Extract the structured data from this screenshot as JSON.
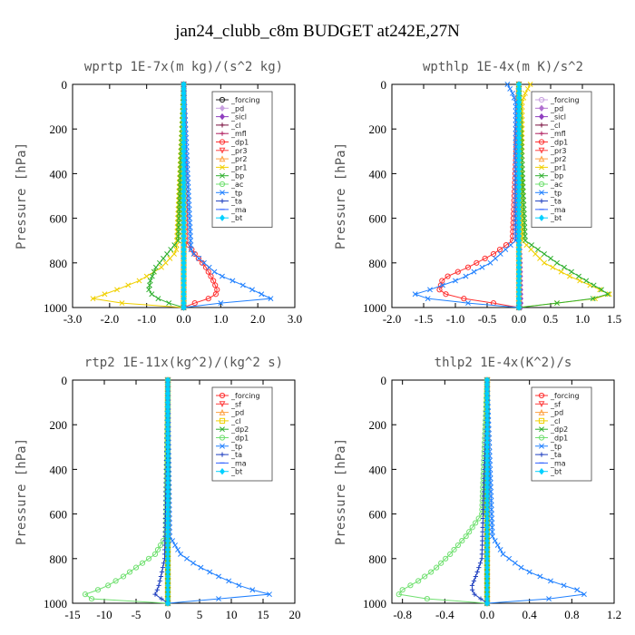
{
  "figure": {
    "title": "jan24_clubb_c8m  BUDGET at242E,27N"
  },
  "chart_data": [
    {
      "type": "line",
      "title": "wprtp  1E-7x(m kg)/(s^2 kg)",
      "ylabel": "Pressure [hPa]",
      "xlabel": "",
      "xlim": [
        -3,
        3
      ],
      "ylim": [
        1000,
        0
      ],
      "xticks": [
        -3,
        -2,
        -1,
        0,
        1,
        2,
        3
      ],
      "xtick_labels": [
        "-3.0",
        "-2.0",
        "-1.0",
        "0.0",
        "1.0",
        "2.0",
        "3.0"
      ],
      "yticks": [
        0,
        200,
        400,
        600,
        800,
        1000
      ],
      "ytick_labels": [
        "0",
        "200",
        "400",
        "600",
        "800",
        "1000"
      ],
      "legend_position": "top-right",
      "series": [
        {
          "name": "_forcing",
          "color": "#222222",
          "marker": "o",
          "p": [
            0,
            200,
            400,
            600,
            800,
            1000
          ],
          "x": [
            0,
            0,
            0,
            0,
            0,
            0
          ]
        },
        {
          "name": "_pd",
          "color": "#c8a0e0",
          "marker": "d",
          "p": [
            0,
            1000
          ],
          "x": [
            0,
            0
          ]
        },
        {
          "name": "_sicl",
          "color": "#9040c0",
          "marker": "d",
          "p": [
            0,
            1000
          ],
          "x": [
            0,
            0
          ]
        },
        {
          "name": "_cl",
          "color": "#7a1040",
          "marker": "+",
          "p": [
            0,
            1000
          ],
          "x": [
            0,
            0
          ]
        },
        {
          "name": "_mfl",
          "color": "#b02060",
          "marker": "+",
          "p": [
            0,
            1000
          ],
          "x": [
            0,
            0
          ]
        },
        {
          "name": "_dp1",
          "color": "#ff3030",
          "marker": "o",
          "p": [
            0,
            700,
            760,
            820,
            880,
            920,
            950,
            980,
            1000
          ],
          "x": [
            0,
            0.05,
            0.3,
            0.6,
            0.8,
            0.9,
            0.85,
            0.3,
            0
          ]
        },
        {
          "name": "_pr3",
          "color": "#ff4040",
          "marker": "v",
          "p": [
            0,
            1000
          ],
          "x": [
            0,
            0
          ]
        },
        {
          "name": "_pr2",
          "color": "#ffa040",
          "marker": "^",
          "p": [
            0,
            1000
          ],
          "x": [
            0,
            0
          ]
        },
        {
          "name": "_pr1",
          "color": "#f0d000",
          "marker": "x",
          "p": [
            0,
            750,
            820,
            880,
            920,
            950,
            970,
            985,
            1000
          ],
          "x": [
            0,
            -0.2,
            -0.6,
            -1.2,
            -1.8,
            -2.3,
            -2.6,
            -1.2,
            0
          ]
        },
        {
          "name": "_bp",
          "color": "#30b030",
          "marker": "x",
          "p": [
            0,
            700,
            760,
            820,
            880,
            930,
            970,
            1000
          ],
          "x": [
            0,
            -0.15,
            -0.45,
            -0.75,
            -0.9,
            -0.95,
            -0.6,
            0
          ]
        },
        {
          "name": "_ac",
          "color": "#70e070",
          "marker": "o",
          "p": [
            0,
            1000
          ],
          "x": [
            0,
            0
          ]
        },
        {
          "name": "_tp",
          "color": "#2080ff",
          "marker": "x",
          "p": [
            0,
            750,
            850,
            900,
            940,
            960,
            980,
            1000
          ],
          "x": [
            0,
            0.2,
            0.9,
            1.6,
            2.1,
            2.35,
            1.0,
            0
          ]
        },
        {
          "name": "_ta",
          "color": "#2040c0",
          "marker": "+",
          "p": [
            0,
            1000
          ],
          "x": [
            0,
            0
          ]
        },
        {
          "name": "_ma",
          "color": "#3060ff",
          "marker": "-",
          "p": [
            0,
            1000
          ],
          "x": [
            0,
            0
          ]
        },
        {
          "name": "_bt",
          "color": "#00d0ff",
          "marker": "d",
          "p": [
            0,
            1000
          ],
          "x": [
            0,
            0
          ]
        }
      ]
    },
    {
      "type": "line",
      "title": "wpthlp  1E-4x(m K)/s^2",
      "ylabel": "Pressure [hPa]",
      "xlabel": "",
      "xlim": [
        -2,
        1.5
      ],
      "ylim": [
        1000,
        0
      ],
      "xticks": [
        -2,
        -1.5,
        -1,
        -0.5,
        0,
        0.5,
        1,
        1.5
      ],
      "xtick_labels": [
        "-2.0",
        "-1.5",
        "-1.0",
        "-0.5",
        "0.0",
        "0.5",
        "1.0",
        "1.5"
      ],
      "yticks": [
        0,
        200,
        400,
        600,
        800,
        1000
      ],
      "ytick_labels": [
        "0",
        "200",
        "400",
        "600",
        "800",
        "1000"
      ],
      "legend_position": "top-right",
      "series": [
        {
          "name": "_forcing",
          "color": "#c8a0e0",
          "marker": "o",
          "p": [
            0,
            1000
          ],
          "x": [
            0,
            0
          ]
        },
        {
          "name": "_pd",
          "color": "#b070d0",
          "marker": "d",
          "p": [
            0,
            1000
          ],
          "x": [
            0,
            0
          ]
        },
        {
          "name": "_sicl",
          "color": "#9040c0",
          "marker": "d",
          "p": [
            0,
            200,
            400,
            600,
            800,
            1000
          ],
          "x": [
            0,
            0,
            0,
            0,
            0.02,
            0.03
          ]
        },
        {
          "name": "_cl",
          "color": "#7a1040",
          "marker": "+",
          "p": [
            0,
            1000
          ],
          "x": [
            0,
            0
          ]
        },
        {
          "name": "_mfl",
          "color": "#b02060",
          "marker": "+",
          "p": [
            0,
            1000
          ],
          "x": [
            0,
            0
          ]
        },
        {
          "name": "_dp1",
          "color": "#ff3030",
          "marker": "o",
          "p": [
            0,
            700,
            760,
            820,
            870,
            920,
            950,
            980,
            1000
          ],
          "x": [
            0,
            -0.1,
            -0.4,
            -0.8,
            -1.2,
            -1.25,
            -1.1,
            -0.4,
            0
          ]
        },
        {
          "name": "_pr3",
          "color": "#ff4040",
          "marker": "v",
          "p": [
            0,
            1000
          ],
          "x": [
            0,
            0
          ]
        },
        {
          "name": "_pr2",
          "color": "#ffa040",
          "marker": "^",
          "p": [
            0,
            1000
          ],
          "x": [
            0,
            0
          ]
        },
        {
          "name": "_pr1",
          "color": "#f0d000",
          "marker": "x",
          "p": [
            0,
            40,
            80,
            700,
            800,
            860,
            910,
            950,
            980,
            1000
          ],
          "x": [
            0.18,
            0.1,
            0.05,
            0.05,
            0.4,
            0.8,
            1.2,
            1.5,
            0.6,
            0
          ]
        },
        {
          "name": "_bp",
          "color": "#30b030",
          "marker": "x",
          "p": [
            0,
            700,
            800,
            870,
            920,
            950,
            980,
            1000
          ],
          "x": [
            0,
            0.1,
            0.6,
            1.0,
            1.3,
            1.45,
            0.6,
            0
          ]
        },
        {
          "name": "_ac",
          "color": "#70e070",
          "marker": "o",
          "p": [
            0,
            1000
          ],
          "x": [
            0,
            0
          ]
        },
        {
          "name": "_tp",
          "color": "#2080ff",
          "marker": "x",
          "p": [
            0,
            40,
            80,
            700,
            800,
            870,
            920,
            950,
            980,
            1000
          ],
          "x": [
            -0.18,
            -0.1,
            -0.05,
            -0.05,
            -0.45,
            -0.9,
            -1.4,
            -1.75,
            -0.8,
            0
          ]
        },
        {
          "name": "_ta",
          "color": "#2040c0",
          "marker": "+",
          "p": [
            0,
            1000
          ],
          "x": [
            0,
            0
          ]
        },
        {
          "name": "_ma",
          "color": "#3060ff",
          "marker": "-",
          "p": [
            0,
            1000
          ],
          "x": [
            0,
            0
          ]
        },
        {
          "name": "_bt",
          "color": "#00d0ff",
          "marker": "d",
          "p": [
            0,
            1000
          ],
          "x": [
            0,
            0
          ]
        }
      ]
    },
    {
      "type": "line",
      "title": "rtp2  1E-11x(kg^2)/(kg^2 s)",
      "ylabel": "Pressure [hPa]",
      "xlabel": "",
      "xlim": [
        -15,
        20
      ],
      "ylim": [
        1000,
        0
      ],
      "xticks": [
        -15,
        -10,
        -5,
        0,
        5,
        10,
        15,
        20
      ],
      "xtick_labels": [
        "-15",
        "-10",
        "-5",
        "0",
        "5",
        "10",
        "15",
        "20"
      ],
      "yticks": [
        0,
        200,
        400,
        600,
        800,
        1000
      ],
      "ytick_labels": [
        "0",
        "200",
        "400",
        "600",
        "800",
        "1000"
      ],
      "legend_position": "top-right",
      "series": [
        {
          "name": "_forcing",
          "color": "#ff3030",
          "marker": "o",
          "p": [
            0,
            200,
            400,
            600,
            800,
            1000
          ],
          "x": [
            0,
            0,
            0,
            0,
            0,
            0
          ]
        },
        {
          "name": "_sf",
          "color": "#ff4040",
          "marker": "v",
          "p": [
            0,
            1000
          ],
          "x": [
            0,
            0
          ]
        },
        {
          "name": "_pd",
          "color": "#ffa040",
          "marker": "^",
          "p": [
            0,
            1000
          ],
          "x": [
            0,
            0
          ]
        },
        {
          "name": "_cl",
          "color": "#f0d000",
          "marker": "s",
          "p": [
            0,
            1000
          ],
          "x": [
            0,
            0
          ]
        },
        {
          "name": "_dp2",
          "color": "#30b030",
          "marker": "x",
          "p": [
            0,
            1000
          ],
          "x": [
            0,
            0
          ]
        },
        {
          "name": "_dp1",
          "color": "#70e070",
          "marker": "o",
          "p": [
            0,
            700,
            780,
            830,
            880,
            930,
            960,
            975,
            1000
          ],
          "x": [
            0,
            -0.3,
            -2.0,
            -4.5,
            -7.0,
            -10.0,
            -13.0,
            -15.0,
            0
          ]
        },
        {
          "name": "_tp",
          "color": "#2080ff",
          "marker": "x",
          "p": [
            0,
            700,
            780,
            830,
            880,
            930,
            960,
            980,
            1000
          ],
          "x": [
            0,
            0.3,
            2.0,
            4.5,
            8.0,
            12.0,
            16.0,
            8.0,
            0
          ]
        },
        {
          "name": "_ta",
          "color": "#2040c0",
          "marker": "+",
          "p": [
            0,
            800,
            870,
            930,
            960,
            1000
          ],
          "x": [
            0,
            -0.5,
            -1.0,
            -1.5,
            -2.0,
            0
          ]
        },
        {
          "name": "_ma",
          "color": "#3060ff",
          "marker": "-",
          "p": [
            0,
            1000
          ],
          "x": [
            0,
            0
          ]
        },
        {
          "name": "_bt",
          "color": "#00d0ff",
          "marker": "d",
          "p": [
            0,
            1000
          ],
          "x": [
            0,
            0
          ]
        }
      ]
    },
    {
      "type": "line",
      "title": "thlp2  1E-4x(K^2)/s",
      "ylabel": "Pressure [hPa]",
      "xlabel": "",
      "xlim": [
        -0.9,
        1.2
      ],
      "ylim": [
        1000,
        0
      ],
      "xticks": [
        -0.8,
        -0.4,
        0,
        0.4,
        0.8,
        1.2
      ],
      "xtick_labels": [
        "-0.8",
        "-0.4",
        "0.0",
        "0.4",
        "0.8",
        "1.2"
      ],
      "yticks": [
        0,
        200,
        400,
        600,
        800,
        1000
      ],
      "ytick_labels": [
        "0",
        "200",
        "400",
        "600",
        "800",
        "1000"
      ],
      "legend_position": "top-right",
      "series": [
        {
          "name": "_forcing",
          "color": "#ff3030",
          "marker": "o",
          "p": [
            0,
            200,
            400,
            600,
            800,
            1000
          ],
          "x": [
            0,
            0,
            0,
            0,
            0,
            0
          ]
        },
        {
          "name": "_sf",
          "color": "#ff4040",
          "marker": "v",
          "p": [
            0,
            1000
          ],
          "x": [
            0,
            0
          ]
        },
        {
          "name": "_pd",
          "color": "#ffa040",
          "marker": "^",
          "p": [
            0,
            1000
          ],
          "x": [
            0,
            0
          ]
        },
        {
          "name": "_cl",
          "color": "#f0d000",
          "marker": "s",
          "p": [
            0,
            1000
          ],
          "x": [
            0,
            0
          ]
        },
        {
          "name": "_dp2",
          "color": "#30b030",
          "marker": "x",
          "p": [
            0,
            1000
          ],
          "x": [
            0,
            0
          ]
        },
        {
          "name": "_dp1",
          "color": "#70e070",
          "marker": "o",
          "p": [
            0,
            600,
            700,
            780,
            850,
            900,
            940,
            970,
            1000
          ],
          "x": [
            0,
            -0.05,
            -0.2,
            -0.35,
            -0.5,
            -0.65,
            -0.8,
            -0.85,
            0
          ]
        },
        {
          "name": "_tp",
          "color": "#2080ff",
          "marker": "x",
          "p": [
            0,
            700,
            780,
            850,
            900,
            940,
            970,
            985,
            1000
          ],
          "x": [
            0,
            0.05,
            0.15,
            0.35,
            0.6,
            0.85,
            0.95,
            0.4,
            0
          ]
        },
        {
          "name": "_ta",
          "color": "#2040c0",
          "marker": "+",
          "p": [
            0,
            800,
            870,
            930,
            960,
            1000
          ],
          "x": [
            0,
            -0.05,
            -0.1,
            -0.15,
            -0.12,
            0
          ]
        },
        {
          "name": "_ma",
          "color": "#3060ff",
          "marker": "-",
          "p": [
            0,
            1000
          ],
          "x": [
            0,
            0
          ]
        },
        {
          "name": "_bt",
          "color": "#00d0ff",
          "marker": "d",
          "p": [
            0,
            1000
          ],
          "x": [
            0,
            0
          ]
        }
      ]
    }
  ]
}
